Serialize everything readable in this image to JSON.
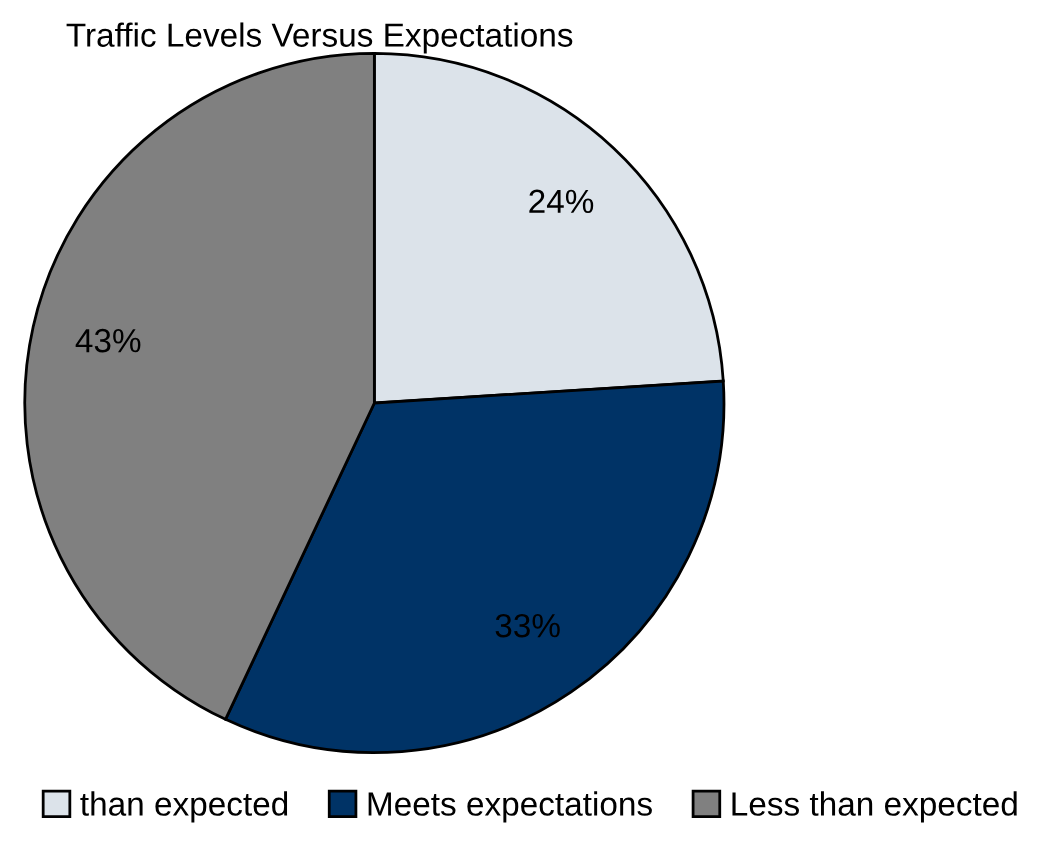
{
  "chart_data": {
    "type": "pie",
    "title": "Traffic Levels Versus Expectations",
    "categories": [
      "than expected",
      "Meets expectations",
      "Less than expected"
    ],
    "values": [
      24,
      33,
      43
    ],
    "value_labels": [
      "24%",
      "33%",
      "43%"
    ],
    "colors": [
      "#dce3ea",
      "#003366",
      "#808080"
    ],
    "legend": "bottom"
  }
}
